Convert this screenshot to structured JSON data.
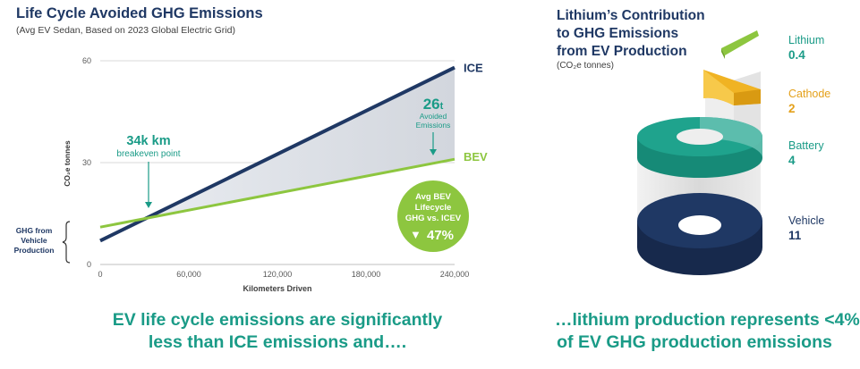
{
  "left_panel": {
    "title": "Life Cycle Avoided GHG Emissions",
    "subtitle": "(Avg EV Sedan, Based on 2023 Global Electric Grid)",
    "ghg_bracket_label": [
      "GHG from",
      "Vehicle",
      "Production"
    ],
    "annotation_breakeven": {
      "value": "34k km",
      "label": "breakeven point"
    },
    "annotation_avoided": {
      "value": "26",
      "unit": "t",
      "label_line1": "Avoided",
      "label_line2": "Emissions"
    },
    "badge": {
      "line1": "Avg BEV",
      "line2": "Lifecycle",
      "line3": "GHG vs. ICEV",
      "arrow": "▼",
      "value": "47%"
    },
    "bottom_text_line1": "EV life cycle emissions are significantly",
    "bottom_text_line2": "less than ICE  emissions and…."
  },
  "chart_data": {
    "type": "line",
    "title": "Life Cycle Avoided GHG Emissions",
    "xlabel": "Kilometers Driven",
    "ylabel": "CO₂e  tonnes",
    "xlim": [
      0,
      240000
    ],
    "ylim": [
      0,
      60
    ],
    "x_ticks": [
      0,
      60000,
      120000,
      180000,
      240000
    ],
    "x_tick_labels": [
      "0",
      "60,000",
      "120,000",
      "180,000",
      "240,000"
    ],
    "y_ticks": [
      0,
      30,
      60
    ],
    "y_tick_labels": [
      "0",
      "30",
      "60"
    ],
    "series": [
      {
        "name": "ICE",
        "color": "#1f3864",
        "x": [
          0,
          240000
        ],
        "y": [
          7,
          58
        ]
      },
      {
        "name": "BEV",
        "color": "#8dc63f",
        "x": [
          0,
          240000
        ],
        "y": [
          11,
          31
        ]
      }
    ],
    "breakeven_km": 34000,
    "avoided_tonnes": 26
  },
  "right_panel": {
    "title_lines": [
      "Lithium’s Contribution",
      "to GHG Emissions",
      "from EV Production"
    ],
    "subtitle": "(CO₂e tonnes)",
    "stack": [
      {
        "label": "Lithium",
        "value": "0.4",
        "color": "#8dc63f",
        "label_color": "#1a9b87"
      },
      {
        "label": "Cathode",
        "value": "2",
        "color": "#f0b323",
        "label_color": "#e4a11b"
      },
      {
        "label": "Battery",
        "value": "4",
        "color": "#1fa38d",
        "label_color": "#1a9b87"
      },
      {
        "label": "Vehicle",
        "value": "11",
        "color": "#1f3864",
        "label_color": "#1f3864"
      }
    ],
    "bottom_text_line1": "…lithium production represents <4%",
    "bottom_text_line2": "of EV GHG production emissions"
  }
}
